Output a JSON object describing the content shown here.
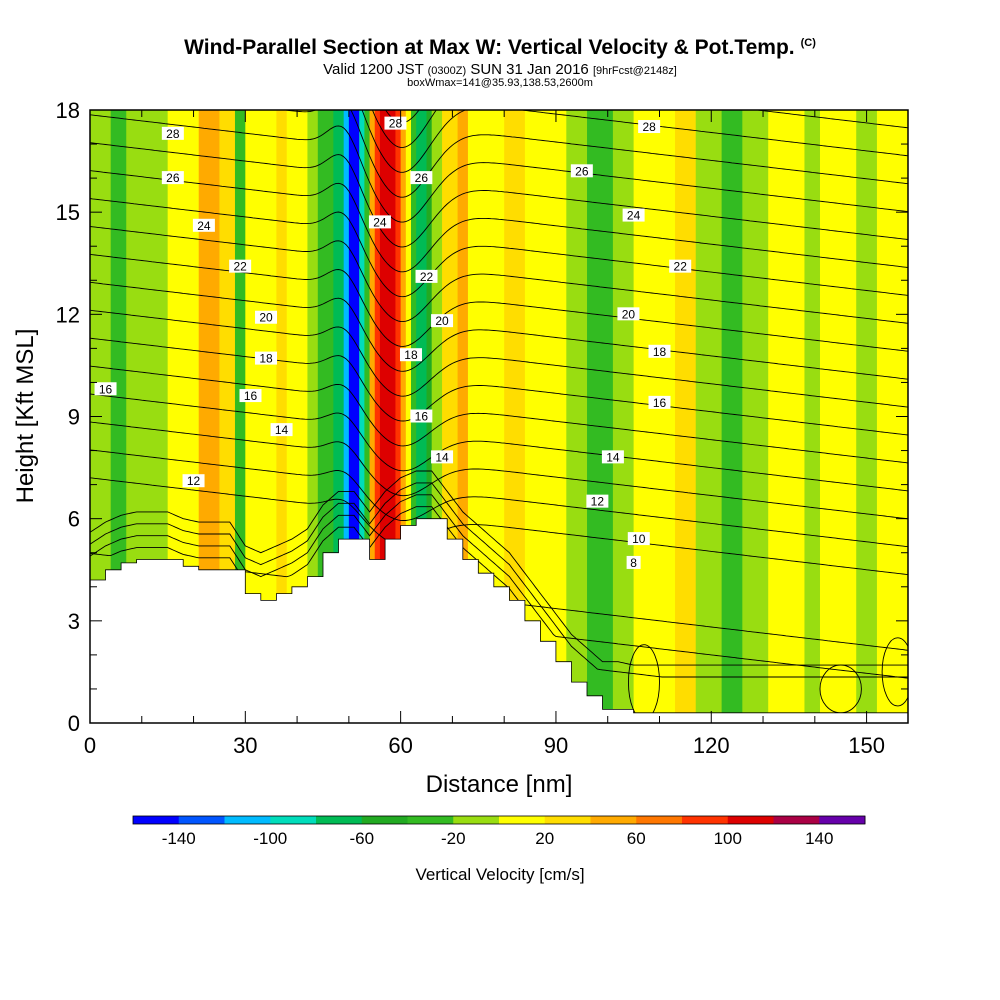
{
  "header": {
    "title": "Wind-Parallel Section at Max W: Vertical Velocity & Pot.Temp.",
    "copyright_mark": "(C)",
    "valid_prefix": "Valid 1200 JST",
    "valid_utc": "(0300Z)",
    "valid_date": "SUN 31 Jan 2016",
    "valid_forecast": "[9hrFcst@2148z]",
    "box_info": "boxWmax=141@35.93,138.53,2600m"
  },
  "chart_data": {
    "type": "heatmap",
    "title": "Wind-Parallel Section at Max W: Vertical Velocity & Pot.Temp.",
    "xlabel": "Distance [nm]",
    "ylabel": "Height [Kft MSL]",
    "xlim": [
      0,
      158
    ],
    "ylim": [
      0,
      18
    ],
    "x_ticks": [
      "0",
      "30",
      "60",
      "90",
      "120",
      "150"
    ],
    "y_ticks": [
      "0",
      "3",
      "6",
      "9",
      "12",
      "15",
      "18"
    ],
    "colorbar": {
      "label": "Vertical Velocity [cm/s]",
      "tick_labels": [
        "-140",
        "-100",
        "-60",
        "-20",
        "20",
        "60",
        "100",
        "140"
      ],
      "levels": [
        -160,
        -140,
        -120,
        -100,
        -80,
        -60,
        -40,
        -20,
        0,
        20,
        40,
        60,
        80,
        100,
        120,
        140,
        160
      ],
      "colors": [
        "#0000ff",
        "#0055ff",
        "#00bbff",
        "#00ddbb",
        "#00bb55",
        "#22aa22",
        "#33bb22",
        "#99dd11",
        "#ffff00",
        "#ffdd00",
        "#ffaa00",
        "#ff7700",
        "#ff3300",
        "#dd0000",
        "#aa0044",
        "#6600aa"
      ]
    },
    "vertical_velocity_columns": [
      {
        "x": [
          0,
          4
        ],
        "w": -10
      },
      {
        "x": [
          4,
          7
        ],
        "w": -30
      },
      {
        "x": [
          7,
          15
        ],
        "w": -10
      },
      {
        "x": [
          15,
          21
        ],
        "w": 10
      },
      {
        "x": [
          21,
          25
        ],
        "w": 40
      },
      {
        "x": [
          25,
          28
        ],
        "w": 30
      },
      {
        "x": [
          28,
          30
        ],
        "w": -30
      },
      {
        "x": [
          30,
          36
        ],
        "w": 10
      },
      {
        "x": [
          36,
          38
        ],
        "w": 30
      },
      {
        "x": [
          38,
          42
        ],
        "w": 10
      },
      {
        "x": [
          42,
          44
        ],
        "w": -10
      },
      {
        "x": [
          44,
          47
        ],
        "w": -30
      },
      {
        "x": [
          47,
          49
        ],
        "w": -70
      },
      {
        "x": [
          49,
          50
        ],
        "w": -110
      },
      {
        "x": [
          50,
          52
        ],
        "w": -150
      },
      {
        "x": [
          52,
          53
        ],
        "w": -90
      },
      {
        "x": [
          53,
          54
        ],
        "w": -30
      },
      {
        "x": [
          54,
          55
        ],
        "w": 50
      },
      {
        "x": [
          55,
          56
        ],
        "w": 90
      },
      {
        "x": [
          56,
          59
        ],
        "w": 110
      },
      {
        "x": [
          59,
          60
        ],
        "w": 90
      },
      {
        "x": [
          60,
          61
        ],
        "w": 50
      },
      {
        "x": [
          61,
          62
        ],
        "w": 10
      },
      {
        "x": [
          62,
          63
        ],
        "w": -30
      },
      {
        "x": [
          63,
          65
        ],
        "w": -70
      },
      {
        "x": [
          65,
          66
        ],
        "w": -50
      },
      {
        "x": [
          66,
          68
        ],
        "w": -10
      },
      {
        "x": [
          68,
          71
        ],
        "w": 30
      },
      {
        "x": [
          71,
          73
        ],
        "w": 50
      },
      {
        "x": [
          73,
          80
        ],
        "w": 10
      },
      {
        "x": [
          80,
          84
        ],
        "w": 30
      },
      {
        "x": [
          84,
          92
        ],
        "w": 10
      },
      {
        "x": [
          92,
          96
        ],
        "w": -10
      },
      {
        "x": [
          96,
          101
        ],
        "w": -30
      },
      {
        "x": [
          101,
          105
        ],
        "w": -10
      },
      {
        "x": [
          105,
          113
        ],
        "w": 10
      },
      {
        "x": [
          113,
          117
        ],
        "w": 30
      },
      {
        "x": [
          117,
          122
        ],
        "w": -10
      },
      {
        "x": [
          122,
          126
        ],
        "w": -30
      },
      {
        "x": [
          126,
          131
        ],
        "w": -10
      },
      {
        "x": [
          131,
          138
        ],
        "w": 10
      },
      {
        "x": [
          138,
          141
        ],
        "w": -10
      },
      {
        "x": [
          141,
          148
        ],
        "w": 10
      },
      {
        "x": [
          148,
          152
        ],
        "w": -10
      },
      {
        "x": [
          152,
          158
        ],
        "w": 10
      }
    ],
    "theta_contours": {
      "levels": [
        8,
        9,
        10,
        11,
        12,
        13,
        14,
        15,
        16,
        17,
        18,
        19,
        20,
        21,
        22,
        23,
        24,
        25,
        26,
        27,
        28,
        29
      ],
      "labels": [
        {
          "text": "28",
          "x": 16,
          "y": 17.3
        },
        {
          "text": "26",
          "x": 16,
          "y": 16.0
        },
        {
          "text": "24",
          "x": 22,
          "y": 14.6
        },
        {
          "text": "22",
          "x": 29,
          "y": 13.4
        },
        {
          "text": "20",
          "x": 34,
          "y": 11.9
        },
        {
          "text": "18",
          "x": 34,
          "y": 10.7
        },
        {
          "text": "16",
          "x": 31,
          "y": 9.6
        },
        {
          "text": "14",
          "x": 37,
          "y": 8.6
        },
        {
          "text": "12",
          "x": 20,
          "y": 7.1
        },
        {
          "text": "16",
          "x": 3,
          "y": 9.8
        },
        {
          "text": "28",
          "x": 59,
          "y": 17.6
        },
        {
          "text": "26",
          "x": 64,
          "y": 16.0
        },
        {
          "text": "24",
          "x": 56,
          "y": 14.7
        },
        {
          "text": "22",
          "x": 65,
          "y": 13.1
        },
        {
          "text": "20",
          "x": 68,
          "y": 11.8
        },
        {
          "text": "18",
          "x": 62,
          "y": 10.8
        },
        {
          "text": "16",
          "x": 64,
          "y": 9.0
        },
        {
          "text": "14",
          "x": 68,
          "y": 7.8
        },
        {
          "text": "28",
          "x": 108,
          "y": 17.5
        },
        {
          "text": "26",
          "x": 95,
          "y": 16.2
        },
        {
          "text": "24",
          "x": 105,
          "y": 14.9
        },
        {
          "text": "22",
          "x": 114,
          "y": 13.4
        },
        {
          "text": "20",
          "x": 104,
          "y": 12.0
        },
        {
          "text": "18",
          "x": 110,
          "y": 10.9
        },
        {
          "text": "16",
          "x": 110,
          "y": 9.4
        },
        {
          "text": "14",
          "x": 101,
          "y": 7.8
        },
        {
          "text": "12",
          "x": 98,
          "y": 6.5
        },
        {
          "text": "10",
          "x": 106,
          "y": 5.4
        },
        {
          "text": "8",
          "x": 105,
          "y": 4.7
        }
      ]
    },
    "terrain": {
      "x": [
        0,
        3,
        6,
        9,
        12,
        15,
        18,
        21,
        24,
        27,
        30,
        33,
        36,
        39,
        42,
        45,
        48,
        51,
        54,
        57,
        60,
        63,
        66,
        69,
        72,
        75,
        78,
        81,
        84,
        87,
        90,
        93,
        96,
        99,
        102,
        105,
        108,
        111,
        114,
        117,
        120,
        123,
        126,
        129,
        132,
        135,
        138,
        141,
        144,
        147,
        150,
        153,
        156,
        158
      ],
      "height": [
        4.2,
        4.5,
        4.7,
        4.8,
        4.8,
        4.8,
        4.6,
        4.5,
        4.5,
        4.5,
        3.8,
        3.6,
        3.8,
        4.0,
        4.3,
        5.0,
        5.4,
        5.4,
        4.8,
        5.4,
        5.8,
        6.0,
        6.0,
        5.4,
        4.8,
        4.4,
        4.0,
        3.6,
        3.0,
        2.4,
        1.8,
        1.2,
        0.8,
        0.4,
        0.4,
        0.3,
        0.3,
        0.3,
        0.3,
        0.3,
        0.3,
        0.3,
        0.3,
        0.3,
        0.3,
        0.3,
        0.3,
        0.3,
        0.3,
        0.3,
        0.3,
        0.3,
        0.3,
        0.3
      ]
    }
  }
}
